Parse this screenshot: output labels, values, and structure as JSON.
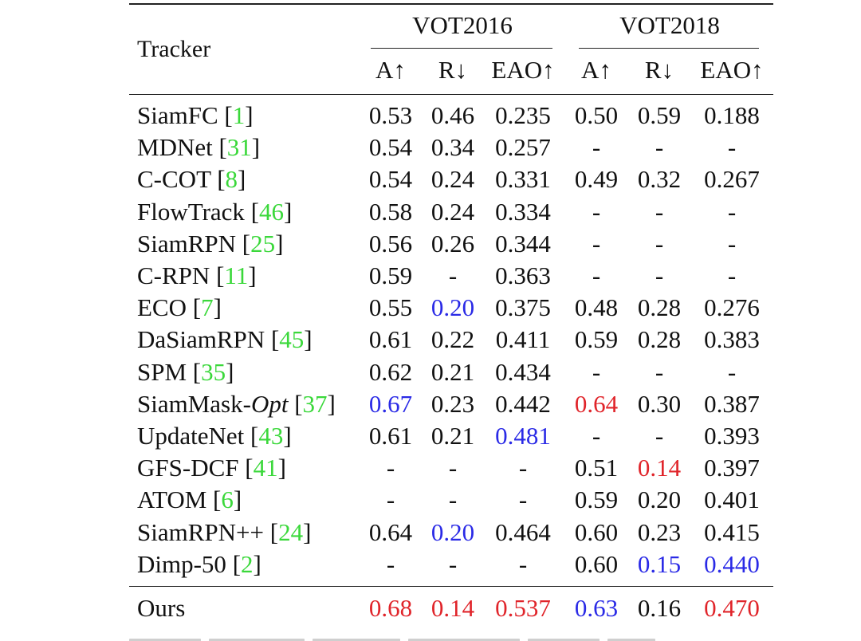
{
  "table": {
    "tracker_header": "Tracker",
    "groups": [
      "VOT2016",
      "VOT2018"
    ],
    "metrics": [
      "A↑",
      "R↓",
      "EAO↑",
      "A↑",
      "R↓",
      "EAO↑"
    ],
    "rows": [
      {
        "name": "SiamFC",
        "ref": "1",
        "cells": [
          {
            "v": "0.53"
          },
          {
            "v": "0.46"
          },
          {
            "v": "0.235"
          },
          {
            "v": "0.50"
          },
          {
            "v": "0.59"
          },
          {
            "v": "0.188"
          }
        ]
      },
      {
        "name": "MDNet",
        "ref": "31",
        "cells": [
          {
            "v": "0.54"
          },
          {
            "v": "0.34"
          },
          {
            "v": "0.257"
          },
          {
            "v": "-"
          },
          {
            "v": "-"
          },
          {
            "v": "-"
          }
        ]
      },
      {
        "name": "C-COT",
        "ref": "8",
        "cells": [
          {
            "v": "0.54"
          },
          {
            "v": "0.24"
          },
          {
            "v": "0.331"
          },
          {
            "v": "0.49"
          },
          {
            "v": "0.32"
          },
          {
            "v": "0.267"
          }
        ]
      },
      {
        "name": "FlowTrack",
        "ref": "46",
        "cells": [
          {
            "v": "0.58"
          },
          {
            "v": "0.24"
          },
          {
            "v": "0.334"
          },
          {
            "v": "-"
          },
          {
            "v": "-"
          },
          {
            "v": "-"
          }
        ]
      },
      {
        "name": "SiamRPN",
        "ref": "25",
        "cells": [
          {
            "v": "0.56"
          },
          {
            "v": "0.26"
          },
          {
            "v": "0.344"
          },
          {
            "v": "-"
          },
          {
            "v": "-"
          },
          {
            "v": "-"
          }
        ]
      },
      {
        "name": "C-RPN",
        "ref": "11",
        "cells": [
          {
            "v": "0.59"
          },
          {
            "v": "-"
          },
          {
            "v": "0.363"
          },
          {
            "v": "-"
          },
          {
            "v": "-"
          },
          {
            "v": "-"
          }
        ]
      },
      {
        "name": "ECO",
        "ref": "7",
        "cells": [
          {
            "v": "0.55"
          },
          {
            "v": "0.20",
            "c": "blue"
          },
          {
            "v": "0.375"
          },
          {
            "v": "0.48"
          },
          {
            "v": "0.28"
          },
          {
            "v": "0.276"
          }
        ]
      },
      {
        "name": "DaSiamRPN",
        "ref": "45",
        "cells": [
          {
            "v": "0.61"
          },
          {
            "v": "0.22"
          },
          {
            "v": "0.411"
          },
          {
            "v": "0.59"
          },
          {
            "v": "0.28"
          },
          {
            "v": "0.383"
          }
        ]
      },
      {
        "name": "SPM",
        "ref": "35",
        "cells": [
          {
            "v": "0.62"
          },
          {
            "v": "0.21"
          },
          {
            "v": "0.434"
          },
          {
            "v": "-"
          },
          {
            "v": "-"
          },
          {
            "v": "-"
          }
        ]
      },
      {
        "name": "SiamMask-",
        "name_italic": "Opt",
        "ref": "37",
        "cells": [
          {
            "v": "0.67",
            "c": "blue"
          },
          {
            "v": "0.23"
          },
          {
            "v": "0.442"
          },
          {
            "v": "0.64",
            "c": "red"
          },
          {
            "v": "0.30"
          },
          {
            "v": "0.387"
          }
        ]
      },
      {
        "name": "UpdateNet",
        "ref": "43",
        "cells": [
          {
            "v": "0.61"
          },
          {
            "v": "0.21"
          },
          {
            "v": "0.481",
            "c": "blue"
          },
          {
            "v": "-"
          },
          {
            "v": "-"
          },
          {
            "v": "0.393"
          }
        ]
      },
      {
        "name": "GFS-DCF",
        "ref": "41",
        "cells": [
          {
            "v": "-"
          },
          {
            "v": "-"
          },
          {
            "v": "-"
          },
          {
            "v": "0.51"
          },
          {
            "v": "0.14",
            "c": "red"
          },
          {
            "v": "0.397"
          }
        ]
      },
      {
        "name": "ATOM",
        "ref": "6",
        "cells": [
          {
            "v": "-"
          },
          {
            "v": "-"
          },
          {
            "v": "-"
          },
          {
            "v": "0.59"
          },
          {
            "v": "0.20"
          },
          {
            "v": "0.401"
          }
        ]
      },
      {
        "name": "SiamRPN++",
        "ref": "24",
        "cells": [
          {
            "v": "0.64"
          },
          {
            "v": "0.20",
            "c": "blue"
          },
          {
            "v": "0.464"
          },
          {
            "v": "0.60"
          },
          {
            "v": "0.23"
          },
          {
            "v": "0.415"
          }
        ]
      },
      {
        "name": "Dimp-50",
        "ref": "2",
        "cells": [
          {
            "v": "-"
          },
          {
            "v": "-"
          },
          {
            "v": "-"
          },
          {
            "v": "0.60"
          },
          {
            "v": "0.15",
            "c": "blue"
          },
          {
            "v": "0.440",
            "c": "blue"
          }
        ]
      }
    ],
    "ours": {
      "name": "Ours",
      "cells": [
        {
          "v": "0.68",
          "c": "red"
        },
        {
          "v": "0.14",
          "c": "red"
        },
        {
          "v": "0.537",
          "c": "red"
        },
        {
          "v": "0.63",
          "c": "blue"
        },
        {
          "v": "0.16"
        },
        {
          "v": "0.470",
          "c": "red"
        }
      ]
    }
  }
}
